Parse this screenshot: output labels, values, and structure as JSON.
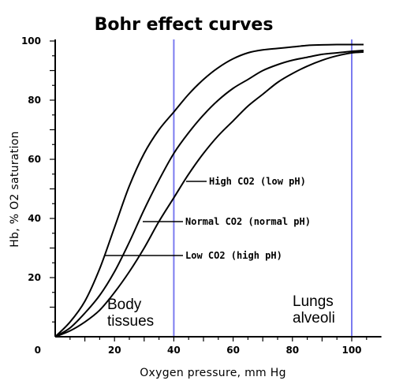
{
  "chart_data": {
    "type": "line",
    "title": "Bohr effect curves",
    "xlabel": "Oxygen pressure, mm Hg",
    "ylabel": "Hb, % O2 saturation",
    "xlim": [
      0,
      110
    ],
    "ylim": [
      0,
      100
    ],
    "x_ticks": [
      20,
      40,
      60,
      80,
      100
    ],
    "y_ticks": [
      20,
      40,
      60,
      80,
      100
    ],
    "origin_label": "0",
    "grid": false,
    "series": [
      {
        "name": "Low CO2 (high pH)",
        "x": [
          0,
          5,
          10,
          15,
          20,
          25,
          30,
          35,
          40,
          45,
          50,
          55,
          60,
          65,
          70,
          75,
          80,
          85,
          90,
          95,
          100,
          104
        ],
        "y": [
          0,
          5,
          12,
          23,
          37,
          51,
          62,
          70,
          76,
          82,
          87,
          91,
          94,
          96,
          97,
          97.5,
          98,
          98.5,
          98.7,
          98.8,
          98.8,
          98.8
        ]
      },
      {
        "name": "Normal CO2 (normal pH)",
        "x": [
          0,
          5,
          10,
          15,
          20,
          25,
          30,
          35,
          40,
          45,
          50,
          55,
          60,
          65,
          70,
          75,
          80,
          85,
          90,
          95,
          100,
          104
        ],
        "y": [
          0,
          3,
          8,
          14,
          22,
          32,
          43,
          53,
          62,
          69,
          75,
          80,
          84,
          87,
          90,
          92,
          93.5,
          94.5,
          95.5,
          96,
          96.5,
          96.8
        ]
      },
      {
        "name": "High CO2 (low pH)",
        "x": [
          0,
          5,
          10,
          15,
          20,
          25,
          30,
          35,
          40,
          45,
          50,
          55,
          60,
          65,
          70,
          75,
          80,
          85,
          90,
          95,
          100,
          104
        ],
        "y": [
          0,
          2,
          5,
          9,
          15,
          22,
          30,
          39,
          47,
          55,
          62,
          68,
          73,
          78,
          82,
          86,
          89,
          91.5,
          93.5,
          95,
          96,
          96.3
        ]
      }
    ],
    "reference_lines": [
      {
        "x": 40,
        "label": "Body\ntissues",
        "color": "#7b7bf0"
      },
      {
        "x": 100,
        "label": "Lungs\nalveoli",
        "color": "#7b7bf0"
      }
    ],
    "annotations": [
      {
        "text": "High CO2 (low pH)",
        "series": "High CO2 (low pH)"
      },
      {
        "text": "Normal CO2 (normal pH)",
        "series": "Normal CO2 (normal pH)"
      },
      {
        "text": "Low CO2 (high pH)",
        "series": "Low CO2 (high pH)"
      }
    ]
  }
}
